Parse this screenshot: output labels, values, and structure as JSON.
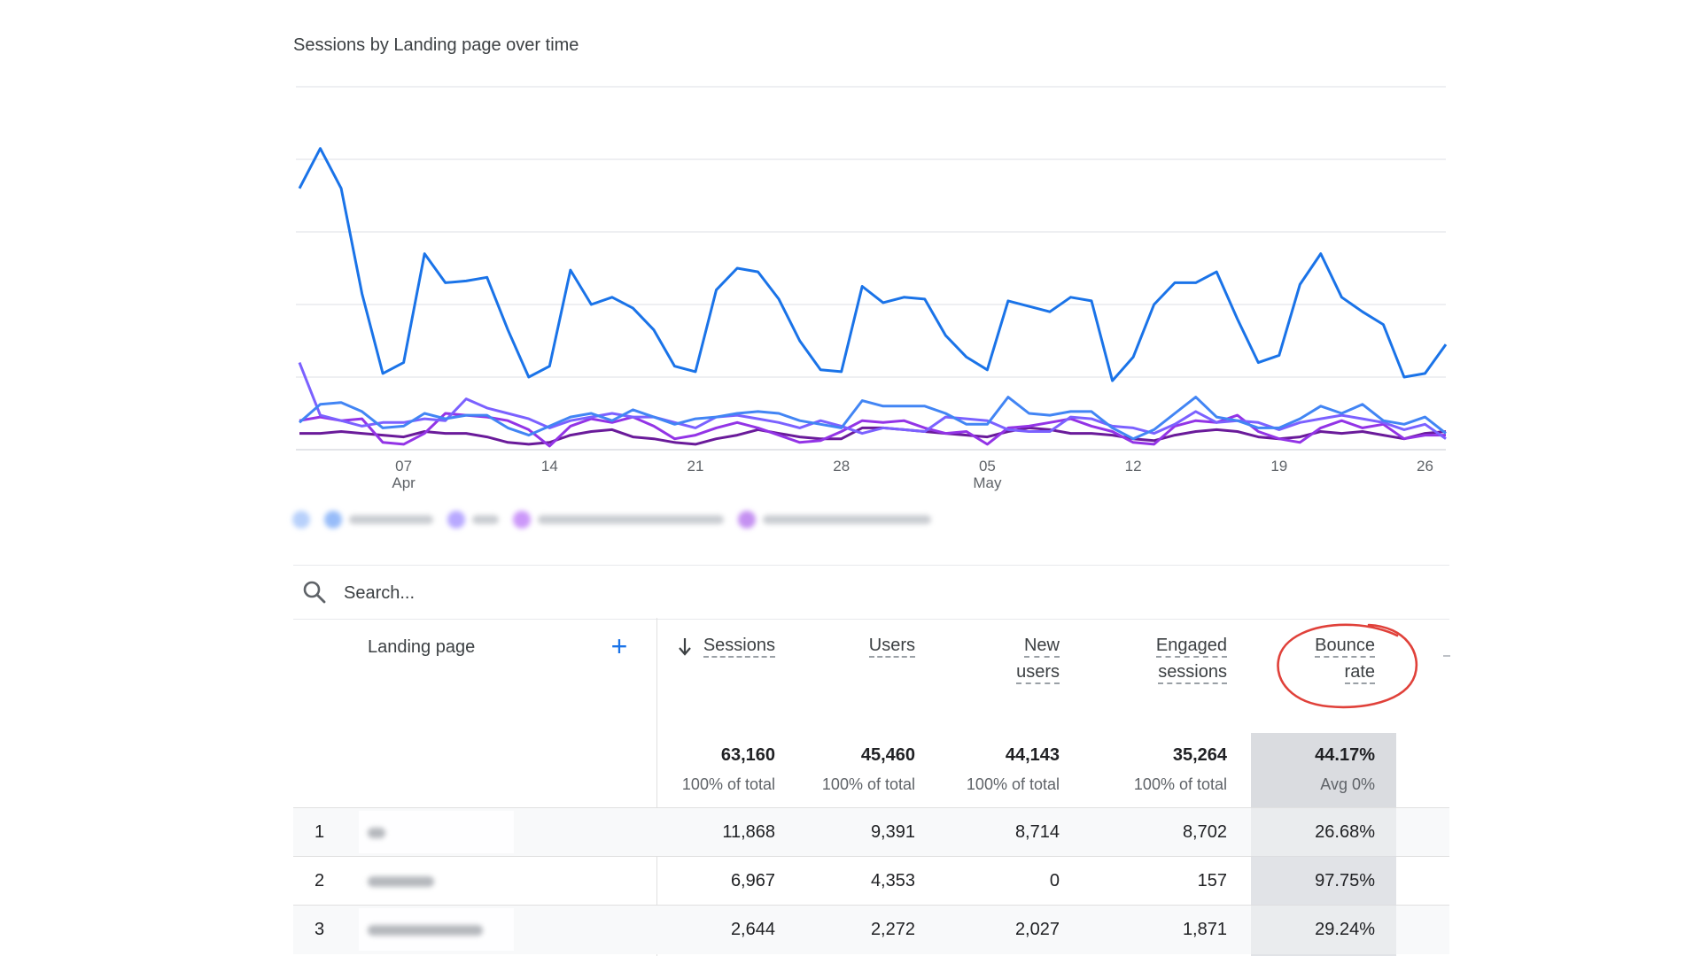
{
  "chart_title": "Sessions by Landing page over time",
  "chart_data": {
    "type": "line",
    "x_ticks": [
      {
        "day": "07",
        "month": "Apr"
      },
      {
        "day": "14",
        "month": ""
      },
      {
        "day": "21",
        "month": ""
      },
      {
        "day": "28",
        "month": ""
      },
      {
        "day": "05",
        "month": "May"
      },
      {
        "day": "12",
        "month": ""
      },
      {
        "day": "19",
        "month": ""
      },
      {
        "day": "26",
        "month": ""
      }
    ],
    "grid": true,
    "series": [
      {
        "color": "#1a73e8",
        "values": [
          1440,
          1660,
          1440,
          860,
          420,
          480,
          1080,
          920,
          930,
          950,
          660,
          400,
          460,
          990,
          800,
          840,
          780,
          660,
          460,
          430,
          880,
          1000,
          980,
          830,
          600,
          440,
          430,
          900,
          810,
          840,
          830,
          630,
          510,
          440,
          820,
          790,
          760,
          840,
          820,
          380,
          510,
          800,
          920,
          920,
          980,
          720,
          480,
          520,
          910,
          1080,
          840,
          760,
          690,
          400,
          420,
          580
        ]
      },
      {
        "color": "#4285f4",
        "values": [
          150,
          250,
          260,
          210,
          120,
          130,
          200,
          170,
          190,
          190,
          120,
          80,
          130,
          180,
          200,
          160,
          220,
          180,
          140,
          170,
          180,
          200,
          210,
          200,
          160,
          140,
          120,
          270,
          240,
          240,
          240,
          200,
          140,
          140,
          290,
          200,
          190,
          210,
          210,
          120,
          60,
          110,
          200,
          290,
          180,
          160,
          120,
          120,
          170,
          240,
          200,
          250,
          160,
          140,
          180,
          90
        ]
      },
      {
        "color": "#7b61ff",
        "values": [
          480,
          190,
          160,
          130,
          150,
          150,
          170,
          160,
          280,
          230,
          200,
          170,
          120,
          160,
          180,
          200,
          180,
          180,
          150,
          120,
          180,
          190,
          170,
          150,
          120,
          160,
          130,
          90,
          120,
          110,
          100,
          180,
          170,
          160,
          110,
          100,
          100,
          180,
          170,
          130,
          120,
          90,
          140,
          210,
          150,
          160,
          150,
          110,
          150,
          170,
          190,
          170,
          150,
          110,
          140,
          60
        ]
      },
      {
        "color": "#9334e6",
        "values": [
          160,
          180,
          160,
          170,
          40,
          30,
          90,
          200,
          190,
          180,
          160,
          110,
          20,
          130,
          170,
          150,
          180,
          130,
          60,
          80,
          120,
          150,
          120,
          80,
          40,
          50,
          100,
          160,
          150,
          160,
          120,
          90,
          100,
          30,
          120,
          130,
          150,
          170,
          130,
          100,
          40,
          30,
          130,
          160,
          150,
          190,
          100,
          60,
          40,
          120,
          160,
          120,
          140,
          60,
          80,
          80
        ]
      },
      {
        "color": "#6a1b9a",
        "values": [
          90,
          90,
          100,
          90,
          80,
          70,
          100,
          90,
          90,
          70,
          40,
          30,
          40,
          80,
          100,
          110,
          70,
          60,
          40,
          30,
          60,
          80,
          110,
          90,
          70,
          60,
          60,
          120,
          120,
          110,
          100,
          90,
          80,
          70,
          100,
          120,
          110,
          90,
          90,
          80,
          60,
          50,
          80,
          100,
          110,
          100,
          70,
          60,
          70,
          100,
          90,
          100,
          80,
          60,
          90,
          100
        ]
      }
    ]
  },
  "search": {
    "placeholder": "Search..."
  },
  "table": {
    "dimension_header": "Landing page",
    "columns": [
      {
        "line1": "Sessions",
        "line2": ""
      },
      {
        "line1": "Users",
        "line2": ""
      },
      {
        "line1": "New",
        "line2": "users"
      },
      {
        "line1": "Engaged",
        "line2": "sessions"
      },
      {
        "line1": "Bounce",
        "line2": "rate"
      }
    ],
    "totals": [
      {
        "value": "63,160",
        "sub": "100% of total"
      },
      {
        "value": "45,460",
        "sub": "100% of total"
      },
      {
        "value": "44,143",
        "sub": "100% of total"
      },
      {
        "value": "35,264",
        "sub": "100% of total"
      },
      {
        "value": "44.17%",
        "sub": "Avg 0%"
      }
    ],
    "rows": [
      {
        "n": "1",
        "cells": [
          "11,868",
          "9,391",
          "8,714",
          "8,702",
          "26.68%"
        ]
      },
      {
        "n": "2",
        "cells": [
          "6,967",
          "4,353",
          "0",
          "157",
          "97.75%"
        ]
      },
      {
        "n": "3",
        "cells": [
          "2,644",
          "2,272",
          "2,027",
          "1,871",
          "29.24%"
        ]
      }
    ]
  },
  "colors": {
    "accent": "#1a73e8",
    "annotation": "#e0413a",
    "highlight": "#e8eaed"
  }
}
